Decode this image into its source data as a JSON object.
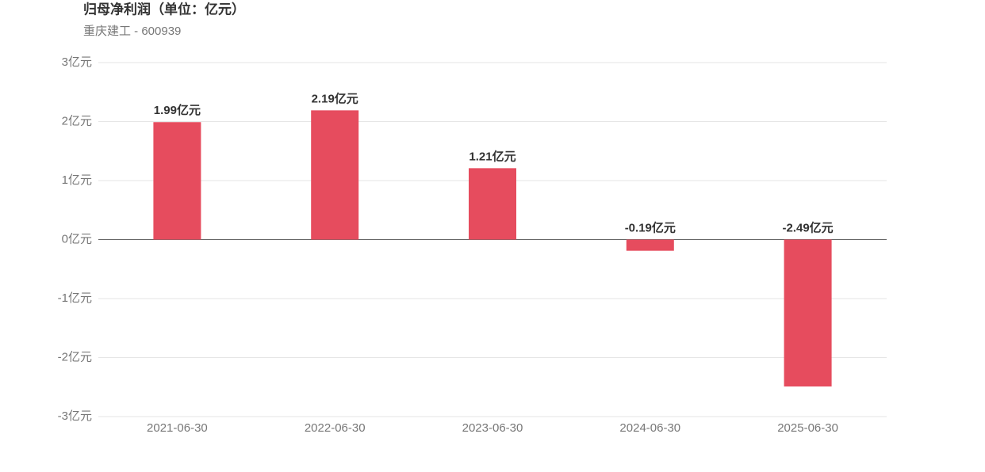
{
  "chart_data": {
    "type": "bar",
    "title": "归母净利润（单位：亿元）",
    "subtitle": "重庆建工 - 600939",
    "categories": [
      "2021-06-30",
      "2022-06-30",
      "2023-06-30",
      "2024-06-30",
      "2025-06-30"
    ],
    "values": [
      1.99,
      2.19,
      1.21,
      -0.19,
      -2.49
    ],
    "value_labels": [
      "1.99亿元",
      "2.19亿元",
      "1.21亿元",
      "-0.19亿元",
      "-2.49亿元"
    ],
    "color": "#e64c5e",
    "ylim": [
      -3,
      3
    ],
    "yticks": [
      {
        "value": -3,
        "label": "-3亿元"
      },
      {
        "value": -2,
        "label": "-2亿元"
      },
      {
        "value": -1,
        "label": "-1亿元"
      },
      {
        "value": 0,
        "label": "0亿元"
      },
      {
        "value": 1,
        "label": "1亿元"
      },
      {
        "value": 2,
        "label": "2亿元"
      },
      {
        "value": 3,
        "label": "3亿元"
      }
    ],
    "grid": true
  }
}
